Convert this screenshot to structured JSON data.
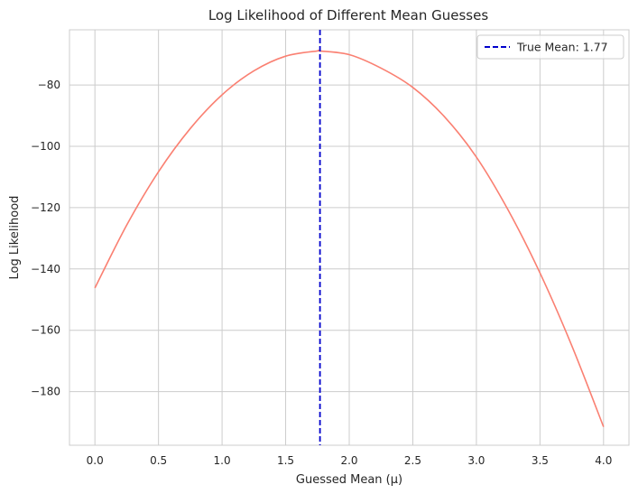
{
  "chart_data": {
    "type": "line",
    "title": "Log Likelihood of Different Mean Guesses",
    "xlabel": "Guessed Mean (μ)",
    "ylabel": "Log Likelihood",
    "xlim": [
      -0.2,
      4.2
    ],
    "ylim": [
      -197.5,
      -62
    ],
    "xticks": [
      0.0,
      0.5,
      1.0,
      1.5,
      2.0,
      2.5,
      3.0,
      3.5,
      4.0
    ],
    "xtick_labels": [
      "0.0",
      "0.5",
      "1.0",
      "1.5",
      "2.0",
      "2.5",
      "3.0",
      "3.5",
      "4.0"
    ],
    "yticks": [
      -80,
      -100,
      -120,
      -140,
      -160,
      -180
    ],
    "ytick_labels": [
      "−80",
      "−100",
      "−120",
      "−140",
      "−160",
      "−180"
    ],
    "grid": true,
    "legend_position": "top-right",
    "series": [
      {
        "name": "",
        "color": "#fa8072",
        "x": [
          0.0,
          0.25,
          0.5,
          0.75,
          1.0,
          1.25,
          1.5,
          1.75,
          1.77,
          2.0,
          2.25,
          2.5,
          2.75,
          3.0,
          3.25,
          3.5,
          3.75,
          4.0
        ],
        "y": [
          -146.2,
          -125.7,
          -108.3,
          -94.2,
          -83.2,
          -75.4,
          -70.6,
          -68.9,
          -68.9,
          -70.1,
          -74.5,
          -80.8,
          -90.4,
          -103.5,
          -120.8,
          -141.3,
          -165.0,
          -191.5
        ]
      }
    ],
    "reference_lines": [
      {
        "type": "vertical",
        "x": 1.77,
        "label": "True Mean: 1.77",
        "color": "#0000cc",
        "style": "dashed"
      }
    ]
  }
}
